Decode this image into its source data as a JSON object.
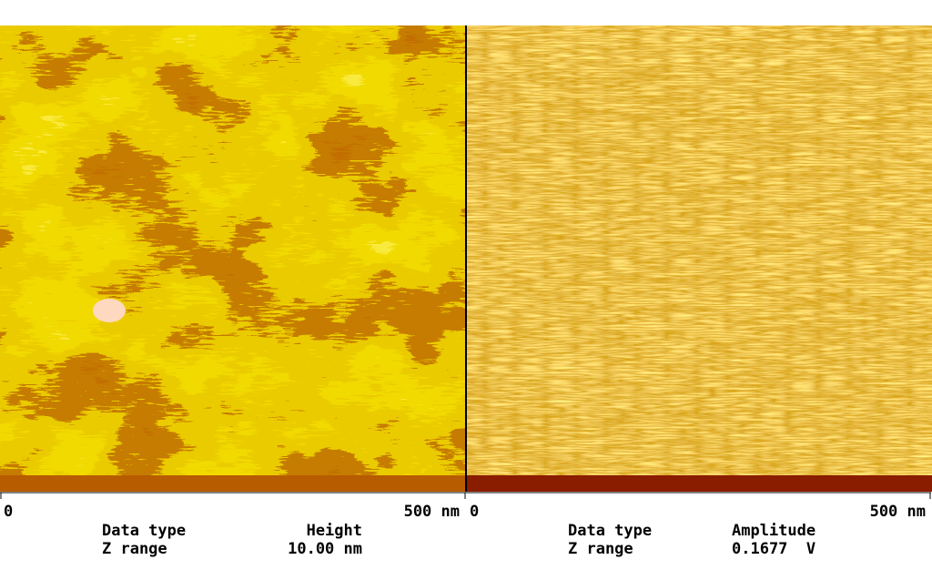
{
  "panels": [
    {
      "scale_start": "0",
      "scale_end": "500 nm",
      "fields": [
        {
          "label": "Data type",
          "value": "Height"
        },
        {
          "label": "Z range",
          "value": "10.00 nm"
        }
      ]
    },
    {
      "scale_start": "0",
      "scale_end": "500 nm",
      "fields": [
        {
          "label": "Data type",
          "value": "Amplitude"
        },
        {
          "label": "Z range",
          "value": "0.1677  V"
        }
      ]
    }
  ]
}
